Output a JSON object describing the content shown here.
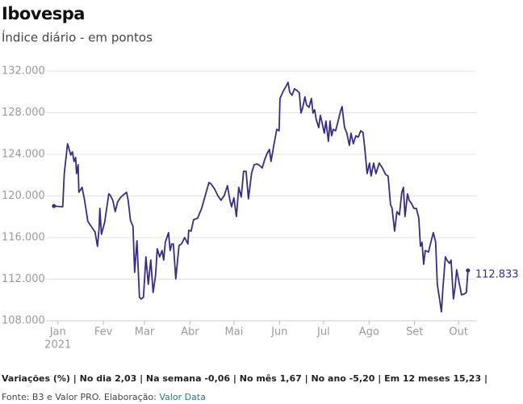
{
  "chart_data": {
    "type": "line",
    "title": "Ibovespa",
    "subtitle": "Índice diário - em pontos",
    "color": "#3b2a86",
    "x": [
      4.3,
      7,
      10.3,
      11.4,
      13.6,
      15.8,
      16.9,
      18,
      19.1,
      19.7,
      20.8,
      21.3,
      23.5,
      25.2,
      27.4,
      29.6,
      32.3,
      34,
      35.1,
      35.6,
      36.7,
      38.9,
      41.7,
      42.8,
      44.4,
      46.1,
      47.7,
      49.9,
      53.8,
      54.9,
      56.5,
      58.2,
      59.3,
      60.9,
      62.6,
      63.7,
      65.3,
      67,
      68.6,
      70.3,
      71.9,
      73.6,
      74.7,
      76.3,
      78,
      79.1,
      80.2,
      81.3,
      82.4,
      83.5,
      84.6,
      85.7,
      87.3,
      89.5,
      91.2,
      93.4,
      95.6,
      96.1,
      97.8,
      99.4,
      102.2,
      104.9,
      107.7,
      109.9,
      111.5,
      113.7,
      115.9,
      118.1,
      120.3,
      122.5,
      124.2,
      125.3,
      126.9,
      128.6,
      130.2,
      131.9,
      133.5,
      135.2,
      136.8,
      139,
      140.7,
      142.9,
      144.5,
      146.2,
      147.8,
      149.5,
      151.1,
      152.2,
      153.9,
      156.1,
      157.7,
      158.3,
      160.5,
      162.7,
      163.8,
      164.9,
      166.5,
      168.2,
      169.8,
      171.5,
      172.6,
      173.7,
      175.3,
      176.4,
      178.1,
      179.7,
      180.8,
      181.9,
      183,
      184.7,
      185.8,
      186.9,
      188.5,
      189.6,
      191.3,
      192.4,
      193.5,
      194.6,
      196.2,
      197.9,
      199.5,
      200.6,
      202.3,
      203.9,
      205.6,
      206.7,
      208.3,
      210,
      211.6,
      213.3,
      214.9,
      216,
      217.7,
      219.3,
      220.4,
      222.1,
      223.7,
      225.9,
      228.1,
      230.3,
      232,
      233.6,
      234.7,
      236.4,
      238,
      239.7,
      241.3,
      242.4,
      243.5,
      245.2,
      246.3,
      247.9,
      249.6,
      251.2,
      252.9,
      254,
      255.1,
      256.2,
      257.3,
      259.5,
      261.1,
      262.8,
      264.4,
      265.5,
      267.2,
      268.3,
      269.4,
      271,
      272.1,
      273.8,
      274.9,
      276.5,
      277.6,
      278.7,
      280.4,
      282,
      283.7,
      285.3,
      286.4
    ],
    "values": [
      119030,
      118990,
      118960,
      122220,
      125020,
      123930,
      124240,
      123310,
      123700,
      122140,
      123000,
      120350,
      120820,
      119580,
      117560,
      117090,
      116550,
      115150,
      116940,
      118800,
      116310,
      117480,
      120200,
      120040,
      119580,
      118490,
      119420,
      119890,
      120350,
      119580,
      117630,
      117090,
      112660,
      115690,
      110250,
      110100,
      110250,
      114140,
      111500,
      113830,
      110720,
      112430,
      114920,
      114140,
      114760,
      113830,
      115540,
      116000,
      116470,
      114760,
      115380,
      115380,
      112040,
      115230,
      115380,
      116000,
      115380,
      116700,
      116620,
      117710,
      117870,
      118800,
      120200,
      121290,
      121130,
      120670,
      120040,
      119580,
      120040,
      120980,
      119580,
      118960,
      119810,
      118020,
      120820,
      119890,
      122370,
      122370,
      119730,
      122220,
      123000,
      123070,
      122920,
      122690,
      123460,
      124080,
      124470,
      123310,
      124710,
      126410,
      126260,
      129370,
      130070,
      130610,
      130920,
      129990,
      129680,
      130300,
      130140,
      129910,
      127970,
      128440,
      129520,
      128750,
      128510,
      129370,
      127970,
      128280,
      127350,
      126570,
      127740,
      127110,
      126030,
      127190,
      125250,
      127190,
      125790,
      126410,
      126260,
      127190,
      128120,
      128590,
      126570,
      126030,
      124860,
      126030,
      125020,
      125790,
      125640,
      126260,
      126100,
      124710,
      122140,
      123150,
      121910,
      123150,
      122140,
      123150,
      122690,
      122060,
      121910,
      119190,
      118800,
      116620,
      118490,
      118180,
      120350,
      120820,
      118020,
      120200,
      119580,
      119270,
      118800,
      118800,
      117870,
      115150,
      115540,
      113440,
      114760,
      114600,
      115540,
      116470,
      115540,
      111500,
      109940,
      108860,
      111260,
      114140,
      113830,
      113520,
      113830,
      110100,
      111190,
      112900,
      111650,
      110490,
      110560,
      110720,
      112833
    ],
    "end_label": "112.833",
    "xlim": [
      0,
      292
    ],
    "xticks": [
      {
        "value": 7,
        "label": "Jan"
      },
      {
        "value": 38,
        "label": "Fev"
      },
      {
        "value": 66,
        "label": "Mar"
      },
      {
        "value": 97,
        "label": "Abr"
      },
      {
        "value": 127,
        "label": "Mai"
      },
      {
        "value": 158,
        "label": "Jun"
      },
      {
        "value": 188,
        "label": "Jul"
      },
      {
        "value": 219,
        "label": "Ago"
      },
      {
        "value": 250,
        "label": "Set"
      },
      {
        "value": 280,
        "label": "Out"
      }
    ],
    "year_label": "2021",
    "ylim": [
      108000,
      132000
    ],
    "yticks": [
      {
        "value": 108000,
        "label": "108.000"
      },
      {
        "value": 112000,
        "label": "112.000"
      },
      {
        "value": 116000,
        "label": "116.000"
      },
      {
        "value": 120000,
        "label": "120.000"
      },
      {
        "value": 124000,
        "label": "124.000"
      },
      {
        "value": 128000,
        "label": "128.000"
      },
      {
        "value": 132000,
        "label": "132.000"
      }
    ],
    "grid": true,
    "footer": "Variações (%) | No dia 2,03 | Na semana -0,06 | No mês 1,67 | No ano -5,20 | Em 12 meses 15,23 |",
    "source": "Fonte: B3 e Valor PRO. Elaboração:",
    "source_link": "Valor Data"
  }
}
